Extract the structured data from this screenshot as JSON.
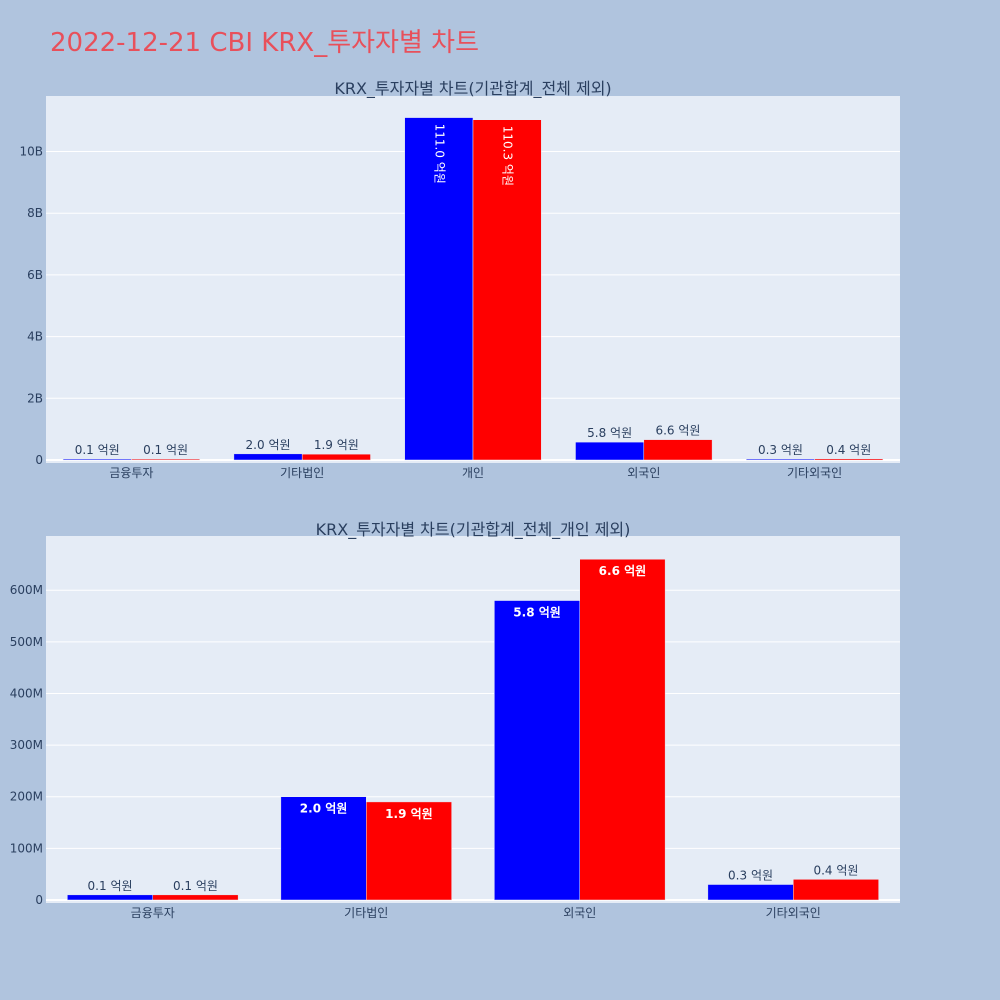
{
  "page": {
    "title": "2022-12-21 CBI KRX_투자자별 차트"
  },
  "colors": {
    "page_background": "#b0c4de",
    "plot_background": "#e5ecf6",
    "gridline": "#ffffff",
    "title_color": "#e8505b",
    "text_color": "#2a3f5f",
    "buy_series": "#0000ff",
    "sell_series": "#ff0000"
  },
  "chart_data": [
    {
      "type": "bar",
      "title": "KRX_투자자별 차트(기관합계_전체 제외)",
      "categories": [
        "금융투자",
        "기타법인",
        "개인",
        "외국인",
        "기타외국인"
      ],
      "series": [
        {
          "color": "#0000ff",
          "values": [
            10000000,
            200000000,
            11100000000,
            580000000,
            30000000
          ],
          "labels": [
            "0.1 억원",
            "2.0 억원",
            "111.0 억원",
            "5.8 억원",
            "0.3 억원"
          ]
        },
        {
          "color": "#ff0000",
          "values": [
            10000000,
            190000000,
            11030000000,
            660000000,
            40000000
          ],
          "labels": [
            "0.1 억원",
            "1.9 억원",
            "110.3 억원",
            "6.6 억원",
            "0.4 억원"
          ]
        }
      ],
      "ylim": [
        0,
        11800000000
      ],
      "yticks": [
        0,
        2000000000,
        4000000000,
        6000000000,
        8000000000,
        10000000000
      ],
      "ytick_labels": [
        "0",
        "2B",
        "4B",
        "6B",
        "8B",
        "10B"
      ],
      "grid": true,
      "barmode": "group"
    },
    {
      "type": "bar",
      "title": "KRX_투자자별 차트(기관합계_전체_개인 제외)",
      "categories": [
        "금융투자",
        "기타법인",
        "외국인",
        "기타외국인"
      ],
      "series": [
        {
          "color": "#0000ff",
          "values": [
            10000000,
            200000000,
            580000000,
            30000000
          ],
          "labels": [
            "0.1 억원",
            "2.0 억원",
            "5.8 억원",
            "0.3 억원"
          ]
        },
        {
          "color": "#ff0000",
          "values": [
            10000000,
            190000000,
            660000000,
            40000000
          ],
          "labels": [
            "0.1 억원",
            "1.9 억원",
            "6.6 억원",
            "0.4 억원"
          ]
        }
      ],
      "ylim": [
        0,
        705000000
      ],
      "yticks": [
        0,
        100000000,
        200000000,
        300000000,
        400000000,
        500000000,
        600000000
      ],
      "ytick_labels": [
        "0",
        "100M",
        "200M",
        "300M",
        "400M",
        "500M",
        "600M"
      ],
      "grid": true,
      "barmode": "group"
    }
  ]
}
